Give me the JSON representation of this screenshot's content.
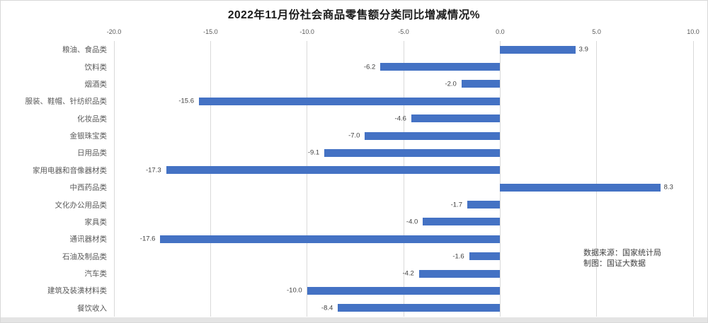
{
  "chart_data": {
    "type": "bar",
    "orientation": "horizontal",
    "title": "2022年11月份社会商品零售额分类同比增减情况%",
    "categories": [
      "粮油、食品类",
      "饮料类",
      "烟酒类",
      "服装、鞋帽、针纺织品类",
      "化妆品类",
      "金银珠宝类",
      "日用品类",
      "家用电器和音像器材类",
      "中西药品类",
      "文化办公用品类",
      "家具类",
      "通讯器材类",
      "石油及制品类",
      "汽车类",
      "建筑及装潢材料类",
      "餐饮收入"
    ],
    "values": [
      3.9,
      -6.2,
      -2.0,
      -15.6,
      -4.6,
      -7.0,
      -9.1,
      -17.3,
      8.3,
      -1.7,
      -4.0,
      -17.6,
      -1.6,
      -4.2,
      -10.0,
      -8.4
    ],
    "value_labels": [
      "3.9",
      "-6.2",
      "-2.0",
      "-15.6",
      "-4.6",
      "-7.0",
      "-9.1",
      "-17.3",
      "8.3",
      "-1.7",
      "-4.0",
      "-17.6",
      "-1.6",
      "-4.2",
      "-10.0",
      "-8.4"
    ],
    "xlabel": "",
    "ylabel": "",
    "xlim": [
      -20.0,
      10.0
    ],
    "x_tick_labels": [
      "-20.0",
      "-15.0",
      "-10.0",
      "-5.0",
      "0.0",
      "5.0",
      "10.0"
    ],
    "x_tick_values": [
      -20,
      -15,
      -10,
      -5,
      0,
      5,
      10
    ],
    "grid": "vertical",
    "tick_position": "top",
    "legend_position": "none",
    "bar_color": "#4472c4"
  },
  "annotation": {
    "line1": "数据来源：国家统计局",
    "line2": "制图：国证大数据"
  }
}
